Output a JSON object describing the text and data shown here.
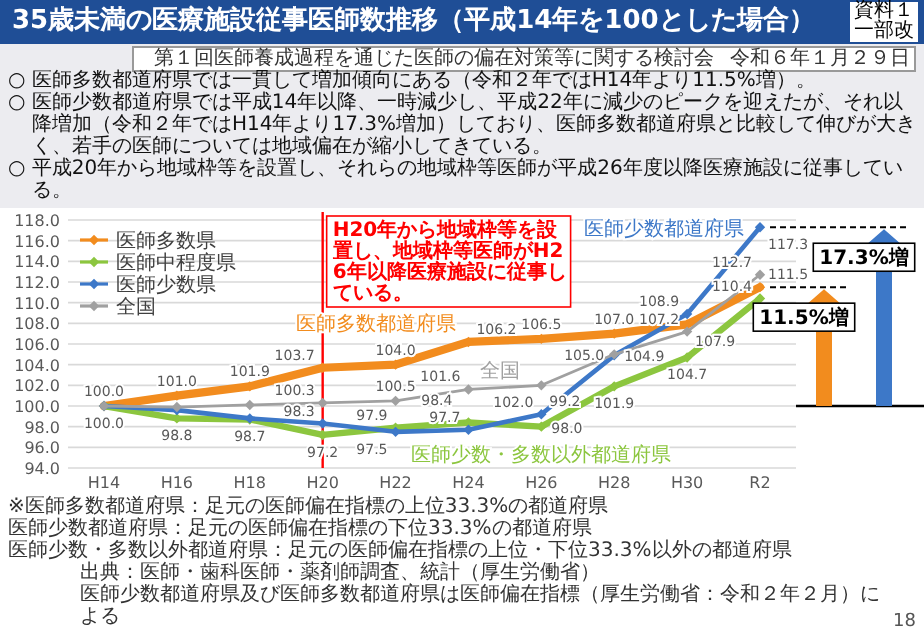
{
  "chart_data": {
    "type": "line",
    "title": "35歳未満の医療施設従事医師数推移（平成14年を100とした場合）",
    "categories": [
      "H14",
      "H16",
      "H18",
      "H20",
      "H22",
      "H24",
      "H26",
      "H28",
      "H30",
      "R2"
    ],
    "series": [
      {
        "name": "医師多数県",
        "color": "#f28c1e",
        "values": [
          100.0,
          101.0,
          101.9,
          103.7,
          104.0,
          106.2,
          106.5,
          107.0,
          107.9,
          111.5
        ],
        "value_labels": [
          "100.0",
          "101.0",
          "101.9",
          "103.7",
          "104.0",
          "106.2",
          "106.5",
          "107.0",
          "107.9",
          "111.5"
        ]
      },
      {
        "name": "医師中程度県",
        "color": "#8cc63f",
        "values": [
          100.0,
          98.8,
          98.7,
          97.2,
          97.9,
          98.4,
          98.0,
          101.9,
          104.7,
          110.4
        ],
        "value_labels": [
          "100.0",
          "98.8",
          "98.7",
          "97.2",
          "97.9",
          "98.4",
          "98.0",
          "101.9",
          "104.7",
          "110.4"
        ]
      },
      {
        "name": "医師少数県",
        "color": "#3d78c8",
        "values": [
          100.0,
          99.6,
          98.8,
          98.3,
          97.5,
          97.7,
          99.2,
          104.9,
          108.9,
          117.3
        ],
        "value_labels": [
          null,
          null,
          null,
          "98.3",
          "97.5",
          "97.7",
          "99.2",
          "104.9",
          "108.9",
          "117.3"
        ]
      },
      {
        "name": "全国",
        "color": "#a0a0a0",
        "values": [
          100.0,
          99.9,
          100.1,
          100.3,
          100.5,
          101.6,
          102.0,
          105.0,
          107.2,
          112.7
        ],
        "value_labels": [
          null,
          null,
          null,
          "100.3",
          "100.5",
          "101.6",
          "102.0",
          "105.0",
          "107.2",
          "112.7"
        ]
      }
    ],
    "ylim": [
      94,
      118
    ],
    "yticks": [
      {
        "value": 94,
        "label": "94.0"
      },
      {
        "value": 96,
        "label": "96.0"
      },
      {
        "value": 98,
        "label": "98.0"
      },
      {
        "value": 100,
        "label": "100.0"
      },
      {
        "value": 102,
        "label": "102.0"
      },
      {
        "value": 104,
        "label": "104.0"
      },
      {
        "value": 106,
        "label": "106.0"
      },
      {
        "value": 108,
        "label": "108.0"
      },
      {
        "value": 110,
        "label": "110.0"
      },
      {
        "value": 112,
        "label": "112.0"
      },
      {
        "value": 114,
        "label": "114.0"
      },
      {
        "value": 116,
        "label": "116.0"
      },
      {
        "value": 118,
        "label": "118.0"
      }
    ],
    "grid": "y",
    "legend": "top left",
    "marker": "diamond",
    "ref_lines": [
      {
        "axis": "x",
        "value": "H20",
        "label": "H20年から地域枠等を設置し、地域枠等医師がH26年以降医療施設に従事している。",
        "color": "#ff0000"
      }
    ],
    "annotations": [
      "資料１",
      "一部改",
      "第１回医師養成過程を通じた医師の偏在対策等に関する検討会",
      "令和６年１月２９日",
      "○ 医師多数都道府県では一貫して増加傾向にある（令和２年ではH14年より11.5%増）。",
      "○ 医師少数都道府県では平成14年以降、一時減少し、平成22年に減少のピークを迎えたが、それ以降増加（令和２年ではH14年より17.3%増加）しており、医師多数都道府県と比較して伸びが大きく、若手の医師については地域偏在が縮小してきている。",
      "○ 平成20年から地域枠等を設置し、それらの地域枠等医師が平成26年度以降医療施設に従事している。",
      "※医師多数都道府県：足元の医師偏在指標の上位33.3%の都道府県",
      "医師少数都道府県：足元の医師偏在指標の下位33.3%の都道府県",
      "医師少数・多数以外都道府県：足元の医師偏在指標の上位・下位33.3%以外の都道府県",
      "出典：医師・歯科医師・薬剤師調査、統計（厚生労働省）",
      "医師少数都道府県及び医師多数都道府県は医師偏在指標（厚生労働省：令和２年２月）による",
      "18",
      {
        "text": "医師少数都道府県",
        "x": "R2",
        "y": 117.3
      },
      {
        "text": "医師多数都道府県",
        "x": "H24",
        "y": 106.2
      },
      {
        "text": "全国",
        "x": "H24",
        "y": 101.6
      },
      {
        "text": "医師少数・多数以外都道府県",
        "x": "H26",
        "y": 98.0
      },
      {
        "text": "11.5%増",
        "x": "R2",
        "y": 111.5
      },
      {
        "text": "17.3%増",
        "x": "R2",
        "y": 117.3
      }
    ]
  }
}
